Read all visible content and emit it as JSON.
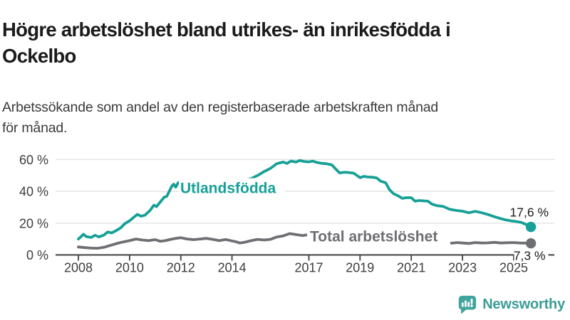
{
  "header": {
    "title_lines": [
      "Högre arbetslöshet bland utrikes- än inrikesfödda i",
      "Ockelbo"
    ],
    "subtitle_lines": [
      "Arbetssökande som andel av den registerbaserade arbetskraften månad",
      "för månad."
    ]
  },
  "chart_data": {
    "type": "line",
    "title": "Högre arbetslöshet bland utrikes- än inrikesfödda i Ockelbo",
    "subtitle": "Arbetssökande som andel av den registerbaserade arbetskraften månad för månad.",
    "grid": "horizontal",
    "legend": "inline-labels",
    "x_axis": {
      "ticks": [
        2008,
        2010,
        2012,
        2014,
        2017,
        2019,
        2021,
        2023,
        2025
      ],
      "range": [
        2007.2,
        2026.6
      ],
      "unit": "year"
    },
    "y_axis": {
      "ticks": [
        0,
        20,
        40,
        60
      ],
      "tick_labels": [
        "0 %",
        "20 %",
        "40 %",
        "60 %"
      ],
      "range": [
        0,
        63
      ],
      "unit": "%"
    },
    "colors": {
      "utlandsfodda": "#16a096",
      "total": "#6e6e73",
      "grid": "#dedede",
      "axis": "#3f3f3f",
      "value_label": "#1c1c1c"
    },
    "series": [
      {
        "name": "Utlandsfödda",
        "color": "#16a096",
        "end_value": 17.6,
        "end_label": "17,6 %",
        "points": [
          [
            2008,
            10
          ],
          [
            2008.1,
            11.5
          ],
          [
            2008.2,
            13
          ],
          [
            2008.3,
            11.6
          ],
          [
            2008.5,
            11
          ],
          [
            2008.65,
            12.4
          ],
          [
            2008.8,
            11.3
          ],
          [
            2009,
            12.5
          ],
          [
            2009.15,
            14.5
          ],
          [
            2009.3,
            13.8
          ],
          [
            2009.5,
            15.5
          ],
          [
            2009.65,
            17
          ],
          [
            2009.8,
            19.5
          ],
          [
            2010,
            21.5
          ],
          [
            2010.15,
            23.5
          ],
          [
            2010.3,
            25.5
          ],
          [
            2010.45,
            24.3
          ],
          [
            2010.6,
            25
          ],
          [
            2010.8,
            28
          ],
          [
            2010.95,
            31.3
          ],
          [
            2011.05,
            30.4
          ],
          [
            2011.2,
            33.3
          ],
          [
            2011.35,
            36.3
          ],
          [
            2011.45,
            36.8
          ],
          [
            2011.55,
            40
          ],
          [
            2011.65,
            43.3
          ],
          [
            2011.72,
            44.5
          ],
          [
            2011.8,
            42.6
          ],
          [
            2011.9,
            45.5
          ],
          [
            2012,
            45
          ],
          [
            2012.3,
            44.6
          ],
          [
            2012.6,
            45.2
          ],
          [
            2013,
            45.4
          ],
          [
            2013.4,
            45.8
          ],
          [
            2013.8,
            46
          ],
          [
            2014.2,
            46.4
          ],
          [
            2014.55,
            47.2
          ],
          [
            2014.75,
            48
          ],
          [
            2015,
            50
          ],
          [
            2015.25,
            52.4
          ],
          [
            2015.5,
            54.4
          ],
          [
            2015.75,
            57.4
          ],
          [
            2016,
            58.4
          ],
          [
            2016.15,
            57.5
          ],
          [
            2016.3,
            59
          ],
          [
            2016.5,
            58.4
          ],
          [
            2016.65,
            59.4
          ],
          [
            2016.8,
            58.8
          ],
          [
            2017,
            58.5
          ],
          [
            2017.15,
            59
          ],
          [
            2017.3,
            58.2
          ],
          [
            2017.5,
            57.6
          ],
          [
            2017.7,
            57.3
          ],
          [
            2017.9,
            56.6
          ],
          [
            2018.05,
            54
          ],
          [
            2018.2,
            51.6
          ],
          [
            2018.4,
            52
          ],
          [
            2018.55,
            51.8
          ],
          [
            2018.75,
            51.4
          ],
          [
            2019,
            48.6
          ],
          [
            2019.15,
            49.4
          ],
          [
            2019.3,
            49
          ],
          [
            2019.5,
            48.8
          ],
          [
            2019.65,
            48.4
          ],
          [
            2019.8,
            46.4
          ],
          [
            2020,
            45.4
          ],
          [
            2020.15,
            41
          ],
          [
            2020.3,
            38.6
          ],
          [
            2020.5,
            37
          ],
          [
            2020.65,
            35.6
          ],
          [
            2020.8,
            36
          ],
          [
            2021,
            36
          ],
          [
            2021.15,
            33.8
          ],
          [
            2021.3,
            34.2
          ],
          [
            2021.5,
            34
          ],
          [
            2021.65,
            33.8
          ],
          [
            2021.8,
            32
          ],
          [
            2022,
            31
          ],
          [
            2022.25,
            30.5
          ],
          [
            2022.5,
            28.7
          ],
          [
            2022.75,
            28
          ],
          [
            2023,
            27.5
          ],
          [
            2023.25,
            26.5
          ],
          [
            2023.5,
            27.4
          ],
          [
            2023.75,
            26.5
          ],
          [
            2024,
            25.4
          ],
          [
            2024.25,
            24
          ],
          [
            2024.5,
            22.8
          ],
          [
            2024.7,
            22
          ],
          [
            2024.9,
            21.4
          ],
          [
            2025.1,
            21
          ],
          [
            2025.3,
            20.4
          ],
          [
            2025.45,
            19.4
          ],
          [
            2025.55,
            18.6
          ],
          [
            2025.67,
            17.6
          ]
        ]
      },
      {
        "name": "Total arbetslöshet",
        "color": "#6e6e73",
        "end_value": 7.3,
        "end_label": "7,3 %",
        "points": [
          [
            2008,
            5
          ],
          [
            2008.25,
            4.6
          ],
          [
            2008.5,
            4.3
          ],
          [
            2008.75,
            4.2
          ],
          [
            2009,
            4.8
          ],
          [
            2009.25,
            6
          ],
          [
            2009.5,
            7.2
          ],
          [
            2009.75,
            8.2
          ],
          [
            2010,
            9
          ],
          [
            2010.25,
            10
          ],
          [
            2010.5,
            9.4
          ],
          [
            2010.75,
            9
          ],
          [
            2011,
            9.6
          ],
          [
            2011.2,
            8.6
          ],
          [
            2011.4,
            9
          ],
          [
            2011.6,
            9.8
          ],
          [
            2011.8,
            10.4
          ],
          [
            2012,
            10.8
          ],
          [
            2012.25,
            10
          ],
          [
            2012.5,
            9.6
          ],
          [
            2012.75,
            10
          ],
          [
            2013,
            10.4
          ],
          [
            2013.25,
            9.8
          ],
          [
            2013.5,
            9
          ],
          [
            2013.75,
            9.7
          ],
          [
            2014,
            8.8
          ],
          [
            2014.15,
            8.3
          ],
          [
            2014.3,
            7.5
          ],
          [
            2014.5,
            8
          ],
          [
            2014.75,
            9
          ],
          [
            2015,
            9.8
          ],
          [
            2015.25,
            9.4
          ],
          [
            2015.5,
            9.8
          ],
          [
            2015.75,
            11.3
          ],
          [
            2016,
            12
          ],
          [
            2016.25,
            13.4
          ],
          [
            2016.5,
            12.8
          ],
          [
            2016.75,
            12.2
          ],
          [
            2017,
            12.8
          ],
          [
            2017.5,
            12.2
          ],
          [
            2018,
            11.2
          ],
          [
            2018.5,
            10.4
          ],
          [
            2019,
            10
          ],
          [
            2019.5,
            9.4
          ],
          [
            2020,
            10.6
          ],
          [
            2020.5,
            11
          ],
          [
            2021,
            9.6
          ],
          [
            2021.5,
            8.6
          ],
          [
            2022,
            8
          ],
          [
            2022.4,
            7.6
          ],
          [
            2022.6,
            7.4
          ],
          [
            2022.8,
            7.8
          ],
          [
            2023,
            7.5
          ],
          [
            2023.25,
            7.2
          ],
          [
            2023.5,
            7.8
          ],
          [
            2023.75,
            7.5
          ],
          [
            2024,
            7.6
          ],
          [
            2024.25,
            7.9
          ],
          [
            2024.5,
            7.5
          ],
          [
            2024.75,
            7.7
          ],
          [
            2025,
            7.8
          ],
          [
            2025.25,
            7.5
          ],
          [
            2025.5,
            7.4
          ],
          [
            2025.67,
            7.3
          ]
        ]
      }
    ]
  },
  "footer": {
    "brand": "Newsworthy",
    "brand_color": "#3b9d95",
    "logo_icon": "bar-chart-speech-bubble-icon"
  }
}
